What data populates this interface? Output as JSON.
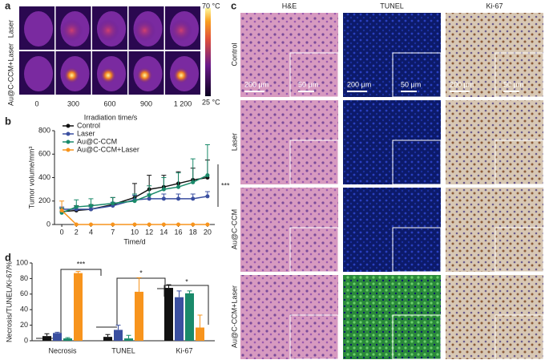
{
  "panels": {
    "a": {
      "label": "a",
      "rows": [
        "Laser",
        "Au@C-CCM+Laser"
      ],
      "times": [
        "0",
        "300",
        "600",
        "900",
        "1 200"
      ],
      "xlabel": "Irradiation time/s",
      "scale_max": "70 °C",
      "scale_min": "25 °C"
    },
    "b": {
      "label": "b"
    },
    "c": {
      "label": "c",
      "columns": [
        "H&E",
        "TUNEL",
        "Ki-67"
      ],
      "rows": [
        "Control",
        "Laser",
        "Au@C-CCM",
        "Au@C-CCM+Laser"
      ],
      "scale_large": "200 μm",
      "scale_small": "50 μm"
    },
    "d": {
      "label": "d"
    }
  },
  "chart_data": [
    {
      "type": "line",
      "xlabel": "Time/d",
      "ylabel": "Tumor volume/mm³",
      "x": [
        0,
        2,
        4,
        7,
        10,
        12,
        14,
        16,
        18,
        20
      ],
      "xlim": [
        -1,
        21
      ],
      "xticks": [
        0,
        2,
        4,
        7,
        10,
        12,
        14,
        16,
        18,
        20
      ],
      "ylim": [
        0,
        800
      ],
      "yticks": [
        0,
        200,
        400,
        600,
        800
      ],
      "legend": "upper left",
      "annotations": [
        "***"
      ],
      "series": [
        {
          "name": "Control",
          "color": "#111111",
          "values": [
            110,
            120,
            130,
            170,
            230,
            300,
            320,
            350,
            380,
            400
          ],
          "errors": [
            30,
            40,
            40,
            60,
            120,
            120,
            100,
            100,
            100,
            150
          ]
        },
        {
          "name": "Laser",
          "color": "#3a4fa0",
          "values": [
            130,
            130,
            130,
            160,
            210,
            220,
            220,
            220,
            220,
            240
          ],
          "errors": [
            20,
            20,
            20,
            30,
            40,
            40,
            40,
            40,
            40,
            40
          ]
        },
        {
          "name": "Au@C-CCM",
          "color": "#1a8a6a",
          "values": [
            100,
            150,
            160,
            180,
            200,
            250,
            300,
            320,
            360,
            420
          ],
          "errors": [
            40,
            60,
            60,
            50,
            60,
            80,
            100,
            120,
            200,
            260
          ]
        },
        {
          "name": "Au@C-CCM+Laser",
          "color": "#f7941d",
          "values": [
            120,
            0,
            0,
            0,
            0,
            0,
            0,
            0,
            0,
            0
          ],
          "errors": [
            80,
            0,
            0,
            0,
            0,
            0,
            0,
            0,
            0,
            0
          ]
        }
      ]
    },
    {
      "type": "bar",
      "ylabel": "Necrosis/TUNEL/Ki-67/%",
      "categories": [
        "Necrosis",
        "TUNEL",
        "Ki-67"
      ],
      "ylim": [
        0,
        100
      ],
      "yticks": [
        0,
        20,
        40,
        60,
        80,
        100
      ],
      "annotations": [
        "***",
        "*",
        "*"
      ],
      "series": [
        {
          "color": "#111111",
          "values": [
            6,
            5,
            68
          ],
          "errors": [
            3,
            3,
            4
          ]
        },
        {
          "color": "#3a4fa0",
          "values": [
            10,
            14,
            56
          ],
          "errors": [
            1,
            6,
            8
          ]
        },
        {
          "color": "#1a8a6a",
          "values": [
            3,
            3,
            61
          ],
          "errors": [
            1,
            4,
            3
          ]
        },
        {
          "color": "#f7941d",
          "values": [
            87,
            63,
            17
          ],
          "errors": [
            2,
            18,
            16
          ]
        }
      ]
    }
  ]
}
